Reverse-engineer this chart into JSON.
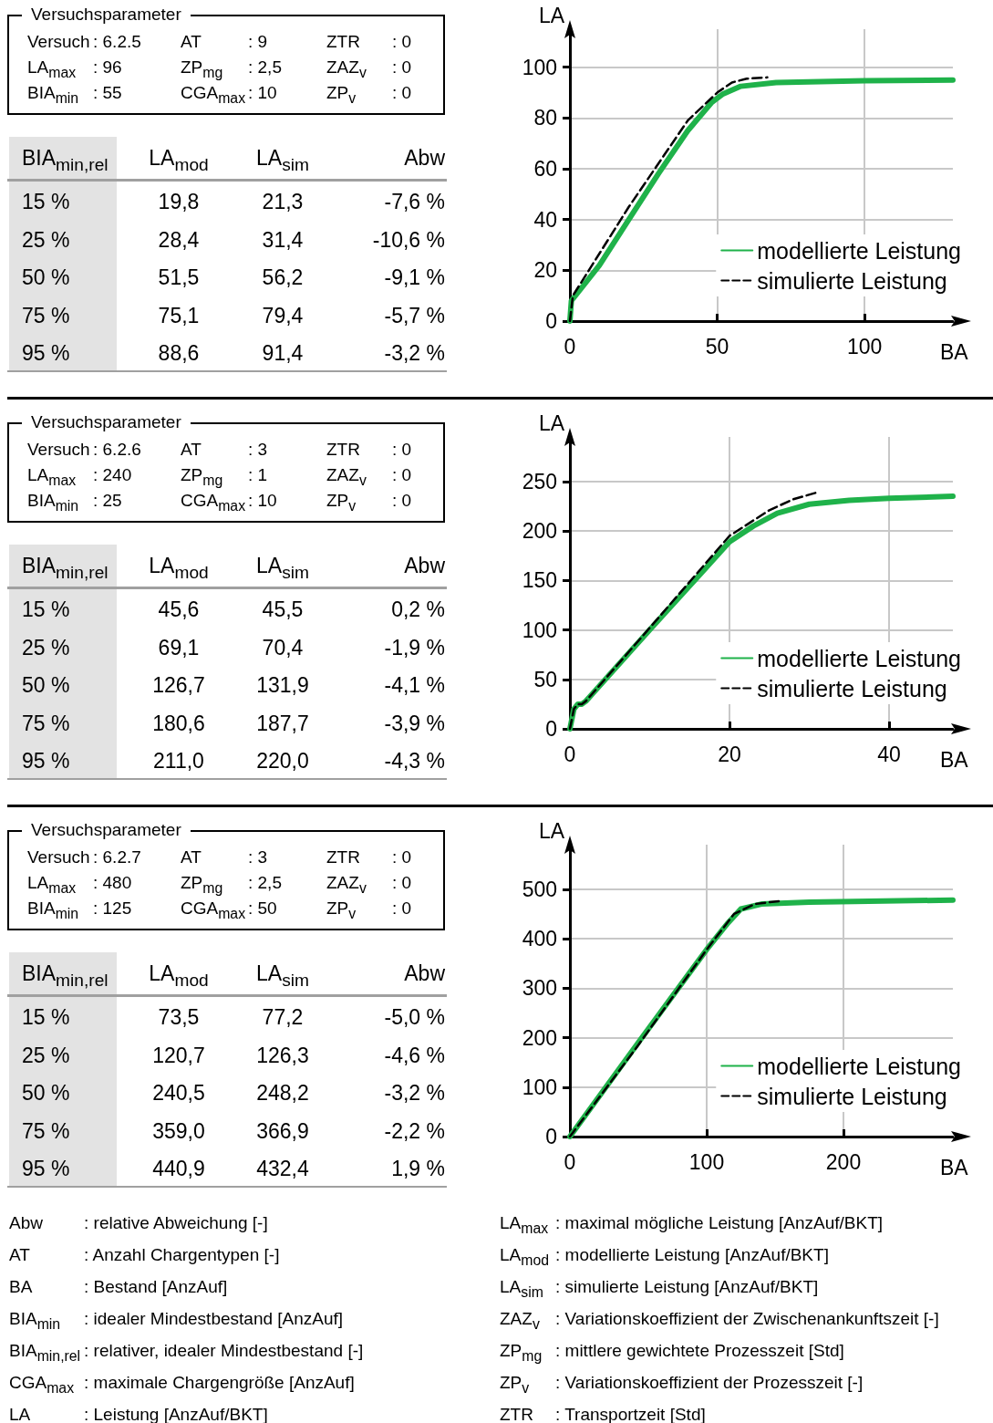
{
  "chart_data": [
    {
      "type": "other",
      "title": "Versuchsparameter",
      "annotations": [
        "Versuch",
        ": 6.2.5",
        "AT",
        ": 9",
        "ZTR",
        ": 0",
        "LA$_{max}$",
        ": 96",
        "ZP$_{mg}$",
        ": 2,5",
        "ZAZ$_{v}$",
        ": 0",
        "BIA$_{min}$",
        ": 55",
        "CGA$_{max}$",
        ": 10",
        "ZP$_{v}$",
        ": 0"
      ]
    },
    {
      "type": "other",
      "categories": [
        "BIA$_{min,rel}$",
        "LA$_{mod}$",
        "LA$_{sim}$",
        "Abw"
      ],
      "annotations": [
        "15 %",
        "19,8",
        "21,3",
        "-7,6 %",
        "25 %",
        "28,4",
        "31,4",
        "-10,6 %",
        "50 %",
        "51,5",
        "56,2",
        "-9,1 %",
        "75 %",
        "75,1",
        "79,4",
        "-5,7 %",
        "95 %",
        "88,6",
        "91,4",
        "-3,2 %"
      ]
    },
    {
      "type": "line",
      "xlabel": "BA",
      "ylabel": "LA",
      "xlim": [
        0,
        130
      ],
      "ylim": [
        0,
        115
      ],
      "xticks": [
        0,
        50,
        100
      ],
      "yticks": [
        0,
        20,
        40,
        60,
        80,
        100
      ],
      "grid": true,
      "legend": "bottom right",
      "marker": "none",
      "series": [
        {
          "name": "modellierte Leistung",
          "color": "#1fb24a",
          "line_style": "solid",
          "x": [
            0,
            0.5,
            10,
            20,
            30,
            40,
            48,
            52,
            58,
            70,
            100,
            130
          ],
          "values": [
            0,
            8,
            22,
            40,
            58,
            75,
            86,
            89.5,
            92.5,
            94,
            94.7,
            95
          ]
        },
        {
          "name": "simulierte Leistung",
          "color": "#000000",
          "line_style": "dashed",
          "x": [
            0,
            1,
            20,
            40,
            50,
            55,
            60,
            67
          ],
          "values": [
            0,
            10,
            45,
            79,
            90,
            94,
            95.5,
            96
          ]
        }
      ]
    },
    {
      "type": "other",
      "title": "Versuchsparameter",
      "annotations": [
        "Versuch",
        ": 6.2.6",
        "AT",
        ": 3",
        "ZTR",
        ": 0",
        "LA$_{max}$",
        ": 240",
        "ZP$_{mg}$",
        ": 1",
        "ZAZ$_{v}$",
        ": 0",
        "BIA$_{min}$",
        ": 25",
        "CGA$_{max}$",
        ": 10",
        "ZP$_{v}$",
        ": 0"
      ]
    },
    {
      "type": "other",
      "categories": [
        "BIA$_{min,rel}$",
        "LA$_{mod}$",
        "LA$_{sim}$",
        "Abw"
      ],
      "annotations": [
        "15 %",
        "45,6",
        "45,5",
        "0,2 %",
        "25 %",
        "69,1",
        "70,4",
        "-1,9 %",
        "50 %",
        "126,7",
        "131,9",
        "-4,1 %",
        "75 %",
        "180,6",
        "187,7",
        "-3,9 %",
        "95 %",
        "211,0",
        "220,0",
        "-4,3 %"
      ]
    },
    {
      "type": "line",
      "xlabel": "BA",
      "ylabel": "LA",
      "xlim": [
        0,
        48
      ],
      "ylim": [
        0,
        295
      ],
      "xticks": [
        0,
        20,
        40
      ],
      "yticks": [
        0,
        50,
        100,
        150,
        200,
        250
      ],
      "grid": true,
      "legend": "bottom right",
      "marker": "none",
      "series": [
        {
          "name": "modellierte Leistung",
          "color": "#1fb24a",
          "line_style": "solid",
          "x": [
            0,
            0.5,
            1,
            1.5,
            2,
            10,
            20,
            23,
            26,
            30,
            35,
            40,
            48
          ],
          "values": [
            0,
            20,
            25,
            25,
            28,
            100,
            189,
            205,
            218,
            227,
            231,
            233,
            235
          ]
        },
        {
          "name": "simulierte Leistung",
          "color": "#000000",
          "line_style": "dashed",
          "x": [
            0,
            0.5,
            1,
            1.5,
            2,
            10,
            20,
            25,
            28,
            31
          ],
          "values": [
            0,
            20,
            25,
            25,
            28,
            102,
            195,
            221,
            232,
            239
          ]
        }
      ]
    },
    {
      "type": "other",
      "title": "Versuchsparameter",
      "annotations": [
        "Versuch",
        ": 6.2.7",
        "AT",
        ": 3",
        "ZTR",
        ": 0",
        "LA$_{max}$",
        ": 480",
        "ZP$_{mg}$",
        ": 2,5",
        "ZAZ$_{v}$",
        ": 0",
        "BIA$_{min}$",
        ": 125",
        "CGA$_{max}$",
        ": 50",
        "ZP$_{v}$",
        ": 0"
      ]
    },
    {
      "type": "other",
      "categories": [
        "BIA$_{min,rel}$",
        "LA$_{mod}$",
        "LA$_{sim}$",
        "Abw"
      ],
      "annotations": [
        "15 %",
        "73,5",
        "77,2",
        "-5,0 %",
        "25 %",
        "120,7",
        "126,3",
        "-4,6 %",
        "50 %",
        "240,5",
        "248,2",
        "-3,2 %",
        "75 %",
        "359,0",
        "366,9",
        "-2,2 %",
        "95 %",
        "440,9",
        "432,4",
        "1,9 %"
      ]
    },
    {
      "type": "line",
      "xlabel": "BA",
      "ylabel": "LA",
      "xlim": [
        0,
        280
      ],
      "ylim": [
        0,
        590
      ],
      "xticks": [
        0,
        100,
        200
      ],
      "yticks": [
        0,
        100,
        200,
        300,
        400,
        500
      ],
      "grid": true,
      "legend": "bottom right",
      "marker": "none",
      "series": [
        {
          "name": "modellierte Leistung",
          "color": "#1fb24a",
          "line_style": "solid",
          "x": [
            0,
            50,
            100,
            115,
            125,
            140,
            175,
            280
          ],
          "values": [
            0,
            190,
            378,
            430,
            460,
            470,
            474,
            478
          ]
        },
        {
          "name": "simulierte Leistung",
          "color": "#000000",
          "line_style": "dashed",
          "x": [
            0,
            50,
            100,
            120,
            135,
            153
          ],
          "values": [
            0,
            185,
            378,
            450,
            470,
            476
          ]
        }
      ]
    },
    {
      "type": "other",
      "annotations": [
        "Abw",
        ": relative Abweichung [-]",
        "AT",
        ": Anzahl Chargentypen [-]",
        "BA",
        ": Bestand [AnzAuf]",
        "BIA$_{min}$",
        ": idealer Mindestbestand [AnzAuf]",
        "BIA$_{min,rel}$",
        ": relativer, idealer Mindestbestand [-]",
        "CGA$_{max}$",
        ": maximale Chargengröße [AnzAuf]",
        "LA",
        ": Leistung [AnzAuf/BKT]",
        "LA$_{max}$",
        ": maximal mögliche Leistung [AnzAuf/BKT]",
        "LA$_{mod}$",
        ": modellierte Leistung [AnzAuf/BKT]",
        "LA$_{sim}$",
        ": simulierte Leistung [AnzAuf/BKT]",
        "ZAZ$_{v}$",
        ": Variationskoeffizient der Zwischenankunftszeit [-]",
        "ZP$_{mg}$",
        ": mittlere gewichtete Prozesszeit [Std]",
        "ZP$_{v}$",
        ": Variationskoeffizient der Prozesszeit [-]",
        "ZTR",
        ": Transportzeit [Std]"
      ]
    }
  ]
}
